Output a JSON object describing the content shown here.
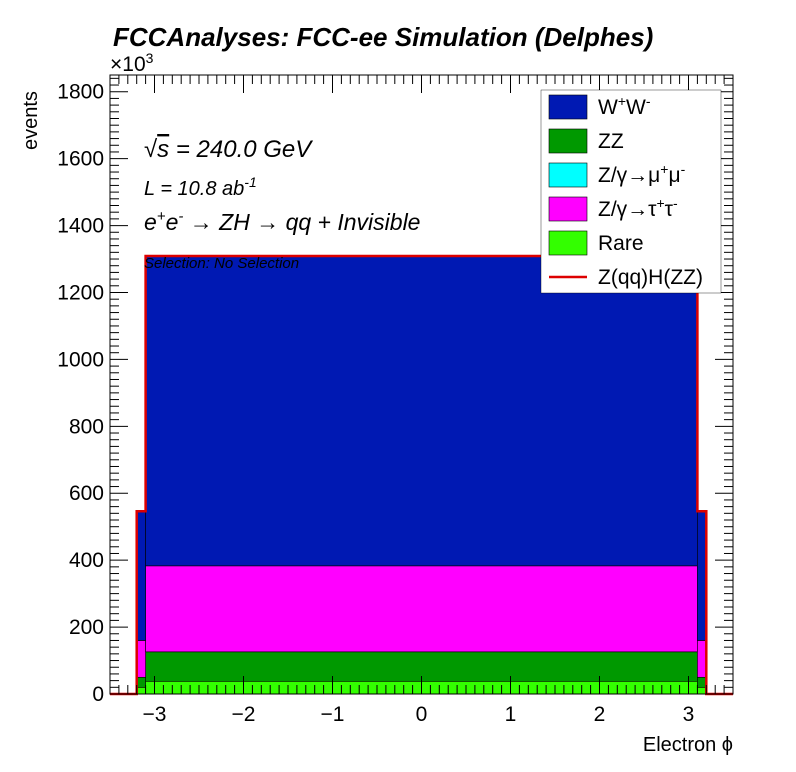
{
  "chart_data": {
    "type": "area",
    "title": "FCCAnalyses: FCC-ee Simulation (Delphes)",
    "xlabel": "Electron ϕ",
    "ylabel": "events",
    "y_multiplier": "×10",
    "y_multiplier_exp": "3",
    "xlim": [
      -3.5,
      3.5
    ],
    "ylim": [
      0,
      1850
    ],
    "x_ticks": [
      -3,
      -2,
      -1,
      0,
      1,
      2,
      3
    ],
    "x_tick_labels": [
      "−3",
      "−2",
      "−1",
      "0",
      "1",
      "2",
      "3"
    ],
    "y_ticks": [
      0,
      200,
      400,
      600,
      800,
      1000,
      1200,
      1400,
      1600,
      1800
    ],
    "y_tick_labels": [
      "0",
      "200",
      "400",
      "600",
      "800",
      "1000",
      "1200",
      "1400",
      "1600",
      "1800"
    ],
    "x_bin_edges": [
      -3.5,
      -3.2,
      -3.1,
      3.1,
      3.2,
      3.5
    ],
    "stack_order": [
      "Rare",
      "ZZ",
      "Z/γ→τ⁺τ⁻",
      "W⁺W⁻"
    ],
    "series": [
      {
        "name": "Rare",
        "color": "#33ff00",
        "values": [
          0,
          20,
          38,
          20,
          0
        ]
      },
      {
        "name": "ZZ",
        "color": "#009900",
        "values": [
          0,
          30,
          88,
          30,
          0
        ]
      },
      {
        "name": "Z/γ→τ⁺τ⁻",
        "color": "#ff00ff",
        "values": [
          0,
          110,
          257,
          110,
          0
        ]
      },
      {
        "name": "Z/γ→μ⁺μ⁻",
        "color": "#00ffff",
        "values": [
          0,
          0,
          0,
          0,
          0
        ]
      },
      {
        "name": "W⁺W⁻",
        "color": "#0019b3",
        "values": [
          0,
          385,
          925,
          385,
          0
        ]
      }
    ],
    "signal": {
      "name": "Z(qq)H(ZZ)",
      "color": "#dd0000",
      "values": [
        0,
        546,
        1309,
        546,
        0
      ]
    },
    "legend": {
      "placement": "top-right",
      "entries": [
        {
          "label": "W",
          "sup1": "+",
          "label2": "W",
          "sup2": "-",
          "color": "#0019b3",
          "kind": "fill"
        },
        {
          "label": "ZZ",
          "sup1": "",
          "label2": "",
          "sup2": "",
          "color": "#009900",
          "kind": "fill"
        },
        {
          "label": "Z/γ→μ",
          "sup1": "+",
          "label2": "μ",
          "sup2": "-",
          "color": "#00ffff",
          "kind": "fill"
        },
        {
          "label": "Z/γ→τ",
          "sup1": "+",
          "label2": "τ",
          "sup2": "-",
          "color": "#ff00ff",
          "kind": "fill"
        },
        {
          "label": "Rare",
          "sup1": "",
          "label2": "",
          "sup2": "",
          "color": "#33ff00",
          "kind": "fill"
        },
        {
          "label": "Z(qq)H(ZZ)",
          "sup1": "",
          "label2": "",
          "sup2": "",
          "color": "#dd0000",
          "kind": "line"
        }
      ]
    },
    "annotations": {
      "sqrt_symbol": "√",
      "energy_s": "s",
      "energy_rest": " = 240.0 GeV",
      "lumi_main": "L = 10.8 ab",
      "lumi_sup": "-1",
      "process_e1": "e",
      "process_sup1": "+",
      "process_e2": "e",
      "process_sup2": "-",
      "process_rest": " → ZH → qq + Invisible",
      "selection": "Selection: No Selection"
    }
  }
}
